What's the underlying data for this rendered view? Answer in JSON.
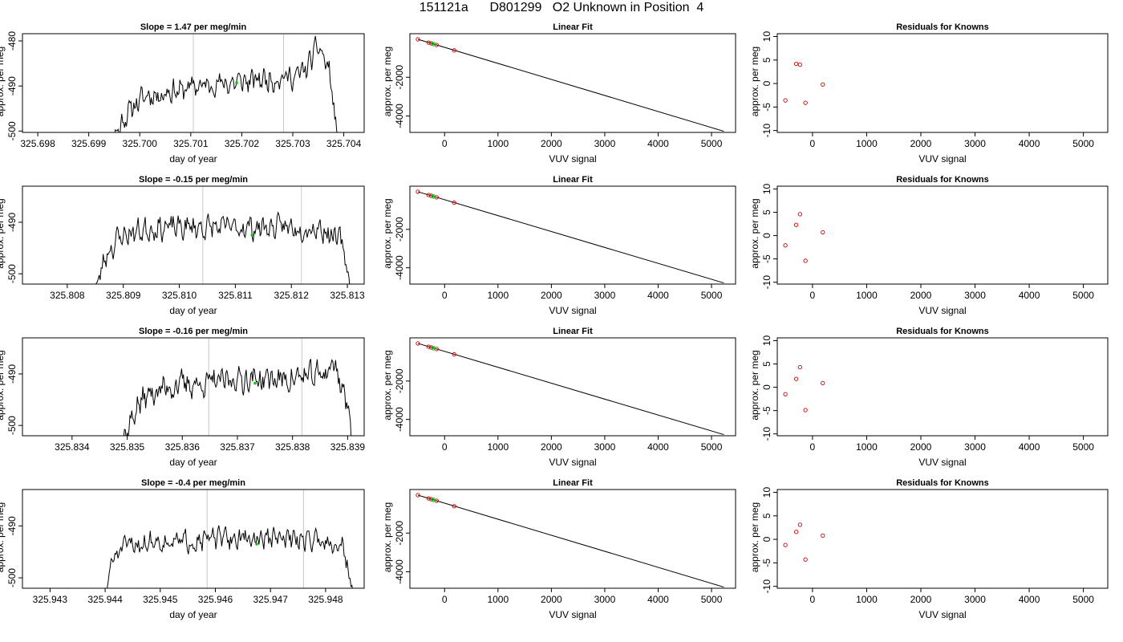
{
  "figure": {
    "title": "151121a      D801299   O2 Unknown in Position  4"
  },
  "colors": {
    "trace": "#000000",
    "marker_green": "#00cc00",
    "marker_red": "#cc0000",
    "vline": "#c8c8c8",
    "axis": "#000000"
  },
  "chart_data": [
    {
      "type": "line",
      "row": 0,
      "title": "Slope =  1.47  per meg/min",
      "xlabel": "day of year",
      "ylabel": "approx. per meg",
      "xlim": [
        325.6977,
        325.7044
      ],
      "ylim": [
        -500.3,
        -478.4
      ],
      "xticks": [
        "325.698",
        "325.699",
        "325.700",
        "325.701",
        "325.702",
        "325.703",
        "325.704"
      ],
      "xtick_values": [
        325.698,
        325.699,
        325.7,
        325.701,
        325.702,
        325.703,
        325.704
      ],
      "yticks": [
        "-500",
        "-490",
        "-480"
      ],
      "ytick_values": [
        -500,
        -490,
        -480
      ],
      "vlines": [
        325.70105,
        325.70282
      ],
      "start": 325.69925,
      "end": 325.70395,
      "levels": [
        -508,
        -502,
        -497,
        -494,
        -492,
        -492,
        -491,
        -491,
        -490,
        -490,
        -489.5,
        -489.5,
        -489,
        -489,
        -488.5,
        -488.5,
        -488,
        -488,
        -486,
        -481,
        -487,
        -510
      ],
      "seed": 11,
      "noise": 1.6,
      "marker": [
        325.7019,
        -489.3
      ]
    },
    {
      "type": "scatter",
      "row": 0,
      "title": "Linear Fit",
      "xlabel": "VUV signal",
      "ylabel": "approx. per meg",
      "xlim": [
        -650,
        5450
      ],
      "ylim": [
        -4850,
        250
      ],
      "xticks": [
        "0",
        "1000",
        "2000",
        "3000",
        "4000",
        "5000"
      ],
      "xtick_values": [
        0,
        1000,
        2000,
        3000,
        4000,
        5000
      ],
      "yticks": [
        "-4000",
        "-2000"
      ],
      "ytick_values": [
        -4000,
        -2000
      ],
      "fit_line": [
        [
          -500,
          -40
        ],
        [
          5230,
          -4790
        ]
      ],
      "points": [
        [
          -500,
          -40
        ],
        [
          -300,
          -210
        ],
        [
          -250,
          -250
        ],
        [
          -150,
          -330
        ],
        [
          180,
          -610
        ]
      ],
      "highlight": [
        -210,
        -285
      ]
    },
    {
      "type": "scatter",
      "row": 0,
      "title": "Residuals for Knowns",
      "xlabel": "VUV signal",
      "ylabel": "approx. per meg",
      "xlim": [
        -650,
        5450
      ],
      "ylim": [
        -10.4,
        10.6
      ],
      "xticks": [
        "0",
        "1000",
        "2000",
        "3000",
        "4000",
        "5000"
      ],
      "xtick_values": [
        0,
        1000,
        2000,
        3000,
        4000,
        5000
      ],
      "yticks": [
        "-10",
        "-5",
        "0",
        "5",
        "10"
      ],
      "ytick_values": [
        -10,
        -5,
        0,
        5,
        10
      ],
      "points": [
        [
          -500,
          -3.6
        ],
        [
          -300,
          4.2
        ],
        [
          -230,
          4.0
        ],
        [
          -130,
          -4.1
        ],
        [
          190,
          -0.2
        ]
      ]
    },
    {
      "type": "line",
      "row": 1,
      "title": "Slope =  -0.15  per meg/min",
      "xlabel": "day of year",
      "ylabel": "approx. per meg",
      "xlim": [
        325.8072,
        325.8133
      ],
      "ylim": [
        -502.0,
        -483.0
      ],
      "xticks": [
        "325.808",
        "325.809",
        "325.810",
        "325.811",
        "325.812",
        "325.813"
      ],
      "xtick_values": [
        325.808,
        325.809,
        325.81,
        325.811,
        325.812,
        325.813
      ],
      "yticks": [
        "-500",
        "-490"
      ],
      "ytick_values": [
        -500,
        -490
      ],
      "vlines": [
        325.81042,
        325.81218
      ],
      "start": 325.80848,
      "end": 325.81312,
      "levels": [
        -504,
        -496,
        -493,
        -492,
        -491.5,
        -491,
        -491,
        -491,
        -491,
        -491,
        -491,
        -491,
        -491,
        -491,
        -491,
        -491,
        -491,
        -491,
        -491,
        -492,
        -494,
        -506
      ],
      "seed": 23,
      "noise": 1.5,
      "marker": [
        325.8113,
        -492.5
      ]
    },
    {
      "type": "scatter",
      "row": 1,
      "title": "Linear Fit",
      "xlabel": "VUV signal",
      "ylabel": "approx. per meg",
      "xlim": [
        -650,
        5450
      ],
      "ylim": [
        -4850,
        250
      ],
      "xticks": [
        "0",
        "1000",
        "2000",
        "3000",
        "4000",
        "5000"
      ],
      "xtick_values": [
        0,
        1000,
        2000,
        3000,
        4000,
        5000
      ],
      "yticks": [
        "-4000",
        "-2000"
      ],
      "ytick_values": [
        -4000,
        -2000
      ],
      "fit_line": [
        [
          -500,
          -40
        ],
        [
          5230,
          -4790
        ]
      ],
      "points": [
        [
          -500,
          -40
        ],
        [
          -300,
          -210
        ],
        [
          -250,
          -250
        ],
        [
          -150,
          -330
        ],
        [
          180,
          -610
        ]
      ],
      "highlight": [
        -210,
        -285
      ]
    },
    {
      "type": "scatter",
      "row": 1,
      "title": "Residuals for Knowns",
      "xlabel": "VUV signal",
      "ylabel": "approx. per meg",
      "xlim": [
        -650,
        5450
      ],
      "ylim": [
        -10.4,
        10.6
      ],
      "xticks": [
        "0",
        "1000",
        "2000",
        "3000",
        "4000",
        "5000"
      ],
      "xtick_values": [
        0,
        1000,
        2000,
        3000,
        4000,
        5000
      ],
      "yticks": [
        "-10",
        "-5",
        "0",
        "5",
        "10"
      ],
      "ytick_values": [
        -10,
        -5,
        0,
        5,
        10
      ],
      "points": [
        [
          -500,
          -2.1
        ],
        [
          -300,
          2.3
        ],
        [
          -230,
          4.6
        ],
        [
          -130,
          -5.4
        ],
        [
          190,
          0.7
        ]
      ]
    },
    {
      "type": "line",
      "row": 2,
      "title": "Slope =  -0.16  per meg/min",
      "xlabel": "day of year",
      "ylabel": "approx. per meg",
      "xlim": [
        325.8331,
        325.8393
      ],
      "ylim": [
        -502.0,
        -483.0
      ],
      "xticks": [
        "325.834",
        "325.835",
        "325.836",
        "325.837",
        "325.838",
        "325.839"
      ],
      "xtick_values": [
        325.834,
        325.835,
        325.836,
        325.837,
        325.838,
        325.839
      ],
      "yticks": [
        "-500",
        "-490"
      ],
      "ytick_values": [
        -500,
        -490
      ],
      "vlines": [
        325.83648,
        325.83817
      ],
      "start": 325.8348,
      "end": 325.83915,
      "levels": [
        -506,
        -501,
        -496,
        -494,
        -493,
        -492.5,
        -492,
        -492,
        -492,
        -491.5,
        -491.5,
        -491,
        -491,
        -491,
        -491,
        -491,
        -491,
        -490.5,
        -490.5,
        -490,
        -488,
        -494,
        -507
      ],
      "seed": 37,
      "noise": 1.6,
      "marker": [
        325.83732,
        -491.8
      ]
    },
    {
      "type": "scatter",
      "row": 2,
      "title": "Linear Fit",
      "xlabel": "VUV signal",
      "ylabel": "approx. per meg",
      "xlim": [
        -650,
        5450
      ],
      "ylim": [
        -4850,
        250
      ],
      "xticks": [
        "0",
        "1000",
        "2000",
        "3000",
        "4000",
        "5000"
      ],
      "xtick_values": [
        0,
        1000,
        2000,
        3000,
        4000,
        5000
      ],
      "yticks": [
        "-4000",
        "-2000"
      ],
      "ytick_values": [
        -4000,
        -2000
      ],
      "fit_line": [
        [
          -500,
          -40
        ],
        [
          5230,
          -4790
        ]
      ],
      "points": [
        [
          -500,
          -40
        ],
        [
          -300,
          -210
        ],
        [
          -250,
          -250
        ],
        [
          -150,
          -330
        ],
        [
          180,
          -610
        ]
      ],
      "highlight": [
        -210,
        -285
      ]
    },
    {
      "type": "scatter",
      "row": 2,
      "title": "Residuals for Knowns",
      "xlabel": "VUV signal",
      "ylabel": "approx. per meg",
      "xlim": [
        -650,
        5450
      ],
      "ylim": [
        -10.4,
        10.6
      ],
      "xticks": [
        "0",
        "1000",
        "2000",
        "3000",
        "4000",
        "5000"
      ],
      "xtick_values": [
        0,
        1000,
        2000,
        3000,
        4000,
        5000
      ],
      "yticks": [
        "-10",
        "-5",
        "0",
        "5",
        "10"
      ],
      "ytick_values": [
        -10,
        -5,
        0,
        5,
        10
      ],
      "points": [
        [
          -500,
          -1.5
        ],
        [
          -300,
          1.8
        ],
        [
          -230,
          4.3
        ],
        [
          -130,
          -4.9
        ],
        [
          190,
          0.9
        ]
      ]
    },
    {
      "type": "line",
      "row": 3,
      "title": "Slope =  -0.4  per meg/min",
      "xlabel": "day of year",
      "ylabel": "approx. per meg",
      "xlim": [
        325.9425,
        325.9487
      ],
      "ylim": [
        -502.0,
        -483.0
      ],
      "xticks": [
        "325.943",
        "325.944",
        "325.945",
        "325.946",
        "325.947",
        "325.948"
      ],
      "xtick_values": [
        325.943,
        325.944,
        325.945,
        325.946,
        325.947,
        325.948
      ],
      "yticks": [
        "-500",
        "-490"
      ],
      "ytick_values": [
        -500,
        -490
      ],
      "vlines": [
        325.94585,
        325.9476
      ],
      "start": 325.94393,
      "end": 325.94855,
      "levels": [
        -506,
        -496,
        -494,
        -493.5,
        -493,
        -493,
        -493,
        -493,
        -492.5,
        -492.5,
        -492.5,
        -492.5,
        -492.5,
        -492.5,
        -492.5,
        -492.5,
        -492.5,
        -492.5,
        -492.5,
        -493,
        -494,
        -506
      ],
      "seed": 51,
      "noise": 1.3,
      "marker": [
        325.94675,
        -493.5
      ]
    },
    {
      "type": "scatter",
      "row": 3,
      "title": "Linear Fit",
      "xlabel": "VUV signal",
      "ylabel": "approx. per meg",
      "xlim": [
        -650,
        5450
      ],
      "ylim": [
        -4850,
        250
      ],
      "xticks": [
        "0",
        "1000",
        "2000",
        "3000",
        "4000",
        "5000"
      ],
      "xtick_values": [
        0,
        1000,
        2000,
        3000,
        4000,
        5000
      ],
      "yticks": [
        "-4000",
        "-2000"
      ],
      "ytick_values": [
        -4000,
        -2000
      ],
      "fit_line": [
        [
          -500,
          -40
        ],
        [
          5230,
          -4790
        ]
      ],
      "points": [
        [
          -500,
          -40
        ],
        [
          -300,
          -210
        ],
        [
          -250,
          -250
        ],
        [
          -150,
          -330
        ],
        [
          180,
          -610
        ]
      ],
      "highlight": [
        -210,
        -285
      ]
    },
    {
      "type": "scatter",
      "row": 3,
      "title": "Residuals for Knowns",
      "xlabel": "VUV signal",
      "ylabel": "approx. per meg",
      "xlim": [
        -650,
        5450
      ],
      "ylim": [
        -10.4,
        10.6
      ],
      "xticks": [
        "0",
        "1000",
        "2000",
        "3000",
        "4000",
        "5000"
      ],
      "xtick_values": [
        0,
        1000,
        2000,
        3000,
        4000,
        5000
      ],
      "yticks": [
        "-10",
        "-5",
        "0",
        "5",
        "10"
      ],
      "ytick_values": [
        -10,
        -5,
        0,
        5,
        10
      ],
      "points": [
        [
          -500,
          -1.2
        ],
        [
          -300,
          1.6
        ],
        [
          -230,
          3.1
        ],
        [
          -130,
          -4.3
        ],
        [
          190,
          0.8
        ]
      ]
    }
  ]
}
